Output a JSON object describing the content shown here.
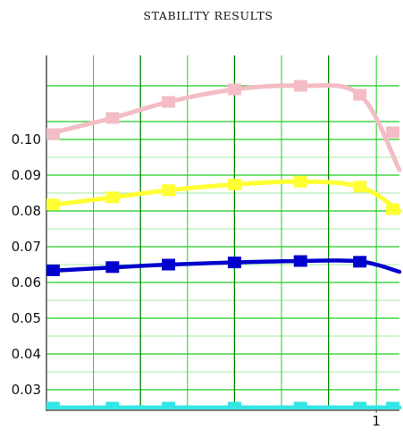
{
  "chart_data": {
    "type": "line",
    "title": "STABILITY RESULTS",
    "xlabel": "",
    "ylabel": "",
    "ylim": [
      0.0245,
      0.1235
    ],
    "xlim": [
      0,
      1.07
    ],
    "y_ticks": [
      0.03,
      0.04,
      0.05,
      0.06,
      0.07,
      0.08,
      0.09,
      0.1
    ],
    "y_tick_labels": [
      "0.03",
      "0.04",
      "0.05",
      "0.06",
      "0.07",
      "0.08",
      "0.09",
      "0.10"
    ],
    "x_ticks": [
      1
    ],
    "x_tick_labels": [
      "1"
    ],
    "grid": true,
    "series": [
      {
        "color": "#f4bcc4",
        "x": [
          0,
          0.2,
          0.37,
          0.57,
          0.77,
          0.95,
          1.07
        ],
        "y": [
          0.1015,
          0.106,
          0.1105,
          0.114,
          0.115,
          0.1125,
          0.0915
        ],
        "markers": [
          {
            "x": 0.02,
            "y": 0.1015
          },
          {
            "x": 0.2,
            "y": 0.106
          },
          {
            "x": 0.37,
            "y": 0.1105
          },
          {
            "x": 0.57,
            "y": 0.114
          },
          {
            "x": 0.77,
            "y": 0.115
          },
          {
            "x": 0.95,
            "y": 0.1125
          },
          {
            "x": 1.05,
            "y": 0.102
          }
        ]
      },
      {
        "color": "#ffff33",
        "x": [
          0,
          0.2,
          0.37,
          0.57,
          0.77,
          0.95,
          1.07
        ],
        "y": [
          0.0815,
          0.0838,
          0.0858,
          0.0874,
          0.0882,
          0.0868,
          0.08
        ],
        "markers": [
          {
            "x": 0.02,
            "y": 0.0818
          },
          {
            "x": 0.2,
            "y": 0.0838
          },
          {
            "x": 0.37,
            "y": 0.0858
          },
          {
            "x": 0.57,
            "y": 0.0874
          },
          {
            "x": 0.77,
            "y": 0.0882
          },
          {
            "x": 0.95,
            "y": 0.0868
          },
          {
            "x": 1.05,
            "y": 0.0805
          }
        ]
      },
      {
        "color": "#0000cc",
        "x": [
          0,
          0.2,
          0.37,
          0.57,
          0.77,
          0.95,
          1.07
        ],
        "y": [
          0.0632,
          0.0642,
          0.065,
          0.0656,
          0.066,
          0.0659,
          0.063
        ],
        "markers": [
          {
            "x": 0.02,
            "y": 0.0634
          },
          {
            "x": 0.2,
            "y": 0.0643
          },
          {
            "x": 0.37,
            "y": 0.065
          },
          {
            "x": 0.57,
            "y": 0.0656
          },
          {
            "x": 0.77,
            "y": 0.066
          },
          {
            "x": 0.95,
            "y": 0.0658
          }
        ]
      },
      {
        "color": "#33e6e6",
        "x": [
          0,
          0.2,
          0.37,
          0.57,
          0.77,
          0.95,
          1.07
        ],
        "y": [
          0.025,
          0.025,
          0.025,
          0.025,
          0.025,
          0.025,
          0.025
        ],
        "markers": [
          {
            "x": 0.02,
            "y": 0.025
          },
          {
            "x": 0.2,
            "y": 0.025
          },
          {
            "x": 0.37,
            "y": 0.025
          },
          {
            "x": 0.57,
            "y": 0.025
          },
          {
            "x": 0.77,
            "y": 0.025
          },
          {
            "x": 0.95,
            "y": 0.025
          },
          {
            "x": 1.05,
            "y": 0.025
          }
        ]
      }
    ],
    "colors": {
      "background": "#ffffff",
      "grid_minor": "#22cc22",
      "grid_major": "#008800",
      "axis": "#555555"
    }
  }
}
